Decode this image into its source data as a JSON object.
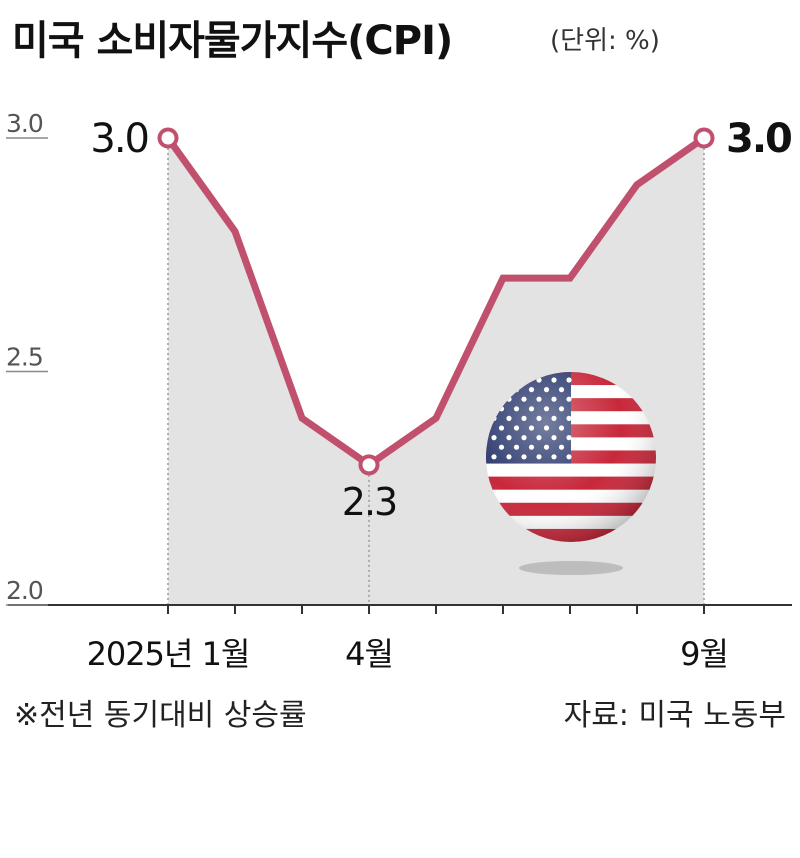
{
  "title": "미국 소비자물가지수(CPI)",
  "unit": "(단위: %)",
  "footnote": "※전년 동기대비 상승률",
  "source": "자료: 미국 노동부",
  "colors": {
    "line": "#c0506e",
    "area": "#e3e3e3",
    "axis": "#333333"
  },
  "decoration": "us-flag-ball-icon",
  "chart_data": {
    "type": "line",
    "x": [
      "2025-01",
      "2025-02",
      "2025-03",
      "2025-04",
      "2025-05",
      "2025-06",
      "2025-07",
      "2025-08",
      "2025-09"
    ],
    "series": [
      {
        "values": [
          3.0,
          2.8,
          2.4,
          2.3,
          2.4,
          2.7,
          2.7,
          2.9,
          3.0
        ]
      }
    ],
    "ylim": [
      2.0,
      3.0
    ],
    "yticks": [
      "3.0",
      "2.5",
      "2.0"
    ],
    "xtick_labels": [
      {
        "index": 0,
        "label": "2025년 1월"
      },
      {
        "index": 3,
        "label": "4월"
      },
      {
        "index": 8,
        "label": "9월"
      }
    ],
    "data_labels": [
      {
        "index": 0,
        "label": "3.0"
      },
      {
        "index": 3,
        "label": "2.3"
      },
      {
        "index": 8,
        "label": "3.0"
      }
    ],
    "grid": false
  }
}
